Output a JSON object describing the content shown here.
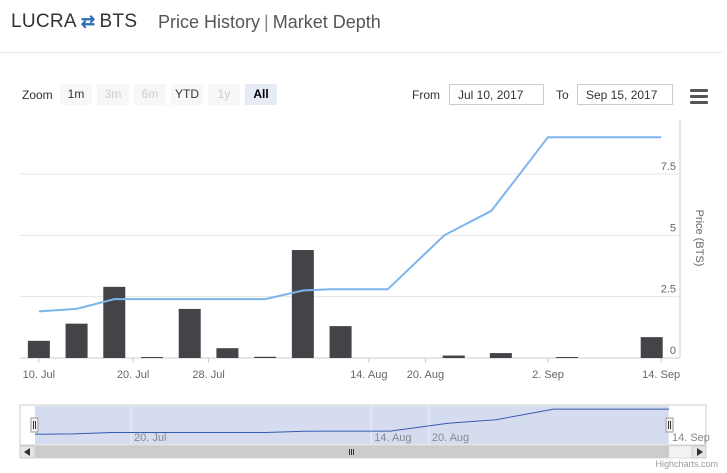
{
  "header": {
    "base": "LUCRA",
    "swap_icon": "⇄",
    "quote": "BTS",
    "tab_price": "Price History",
    "separator": "|",
    "tab_depth": "Market Depth"
  },
  "toolbar": {
    "zoom_label": "Zoom",
    "buttons": [
      {
        "label": "1m",
        "state": "enabled"
      },
      {
        "label": "3m",
        "state": "disabled"
      },
      {
        "label": "6m",
        "state": "disabled"
      },
      {
        "label": "YTD",
        "state": "enabled"
      },
      {
        "label": "1y",
        "state": "disabled"
      },
      {
        "label": "All",
        "state": "selected"
      }
    ],
    "from_label": "From",
    "from_value": "Jul 10, 2017",
    "to_label": "To",
    "to_value": "Sep 15, 2017",
    "menu_icon": "hamburger-menu-icon"
  },
  "chart_data": {
    "type": "line+bar",
    "ylabel": "Price (BTS)",
    "yticks": [
      "0",
      "2.5",
      "5",
      "7.5"
    ],
    "ylim": [
      0,
      9.7
    ],
    "xlim": [
      "2017-07-08",
      "2017-09-16"
    ],
    "xticks": [
      {
        "date": "2017-07-10",
        "label": "10. Jul"
      },
      {
        "date": "2017-07-20",
        "label": "20. Jul"
      },
      {
        "date": "2017-07-28",
        "label": "28. Jul"
      },
      {
        "date": "2017-08-14",
        "label": "14. Aug"
      },
      {
        "date": "2017-08-20",
        "label": "20. Aug"
      },
      {
        "date": "2017-09-02",
        "label": "2. Sep"
      },
      {
        "date": "2017-09-14",
        "label": "14. Sep"
      }
    ],
    "price": {
      "color": "#7cb5ec",
      "dates": [
        "2017-07-10",
        "2017-07-14",
        "2017-07-18",
        "2017-07-20",
        "2017-08-03",
        "2017-08-07",
        "2017-08-10",
        "2017-08-16",
        "2017-08-22",
        "2017-08-27",
        "2017-09-02",
        "2017-09-08",
        "2017-09-14"
      ],
      "values": [
        1.9,
        2.0,
        2.4,
        2.4,
        2.4,
        2.75,
        2.8,
        2.8,
        5.0,
        6.0,
        9.0,
        9.0,
        9.0
      ]
    },
    "volume": {
      "color": "#434348",
      "dates": [
        "2017-07-10",
        "2017-07-14",
        "2017-07-18",
        "2017-07-22",
        "2017-07-26",
        "2017-07-30",
        "2017-08-03",
        "2017-08-07",
        "2017-08-11",
        "2017-08-23",
        "2017-08-28",
        "2017-09-04",
        "2017-09-13"
      ],
      "values": [
        0.7,
        1.4,
        2.9,
        0.04,
        2.0,
        0.4,
        0.05,
        4.4,
        1.3,
        0.1,
        0.2,
        0.04,
        0.85
      ]
    },
    "navigator": {
      "labels": [
        "20. Jul",
        "14. Aug",
        "20. Aug",
        "14. Sep"
      ],
      "label_dates": [
        "2017-07-20",
        "2017-08-14",
        "2017-08-20",
        "2017-09-14"
      ],
      "line_color": "#335cad",
      "mask_color": "#d6dcf0"
    }
  },
  "credits": "Highcharts.com"
}
